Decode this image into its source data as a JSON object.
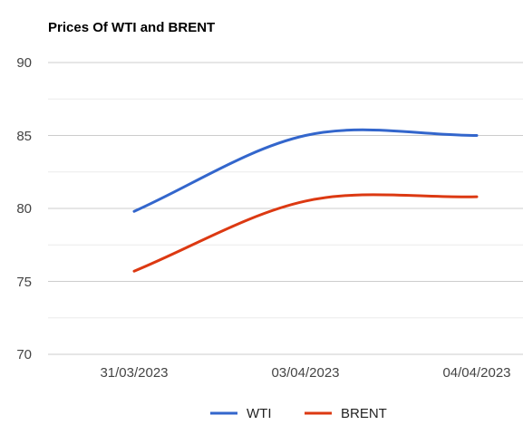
{
  "chart_data": {
    "type": "line",
    "title": "Prices Of WTI and BRENT",
    "xlabel": "",
    "ylabel": "",
    "categories": [
      "31/03/2023",
      "03/04/2023",
      "04/04/2023"
    ],
    "x_tick_labels": [
      "31/03/2023",
      "03/04/2023",
      "04/04/2023"
    ],
    "y_tick_labels": [
      "90",
      "85",
      "80",
      "75",
      "70"
    ],
    "ylim": [
      70,
      90
    ],
    "y_ticks": [
      70,
      75,
      80,
      85,
      90
    ],
    "grid": true,
    "smooth": true,
    "legend_position": "bottom",
    "series": [
      {
        "name": "WTI",
        "values": [
          79.8,
          85.0,
          85.0
        ],
        "color": "#3366cc"
      },
      {
        "name": "BRENT",
        "values": [
          75.7,
          80.5,
          80.8
        ],
        "color": "#dc3912"
      }
    ]
  }
}
